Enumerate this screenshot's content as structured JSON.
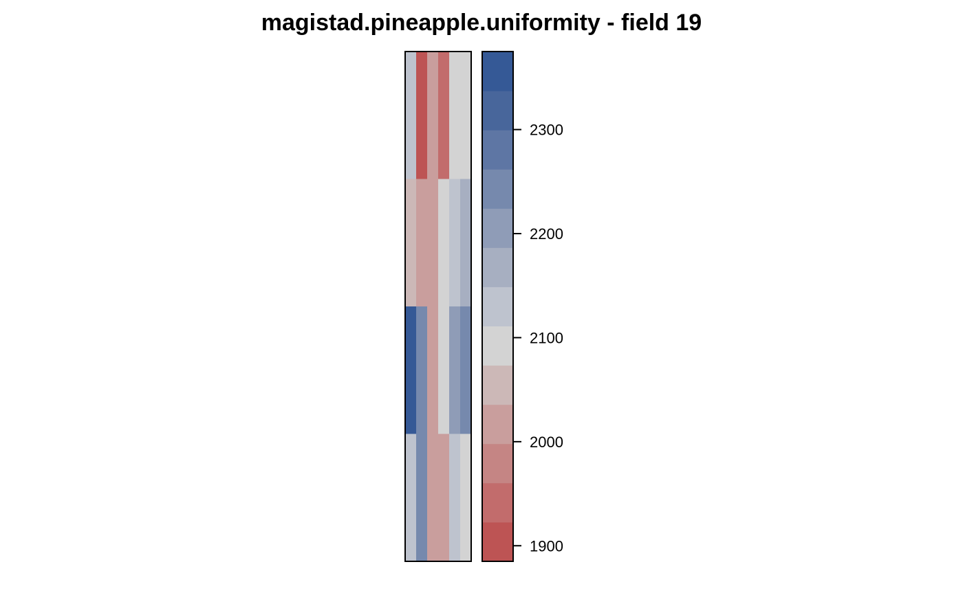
{
  "chart_data": {
    "type": "heatmap",
    "title": "magistad.pineapple.uniformity - field 19",
    "xlabel": "",
    "ylabel": "",
    "grid": false,
    "n_rows": 4,
    "n_cols": 6,
    "rows_top_to_bottom": [
      [
        2125,
        1900,
        2000,
        1940,
        2100,
        2100
      ],
      [
        2050,
        2020,
        2020,
        2100,
        2140,
        2180
      ],
      [
        2360,
        2240,
        2020,
        2100,
        2220,
        2240
      ],
      [
        2125,
        2240,
        2020,
        2020,
        2125,
        2100
      ]
    ],
    "legend": {
      "placement": "right",
      "range": [
        1885,
        2375
      ],
      "ticks": [
        1900,
        2000,
        2100,
        2200,
        2300
      ],
      "tick_labels": [
        "1900",
        "2000",
        "2100",
        "2200",
        "2300"
      ],
      "colors_bottom_to_top": [
        "#bd5454",
        "#c26c6c",
        "#c58584",
        "#c99e9d",
        "#ccb8b7",
        "#d3d3d3",
        "#bec3ce",
        "#a7afc1",
        "#8f9cb7",
        "#7689ad",
        "#5e76a4",
        "#48669b",
        "#355996"
      ]
    }
  }
}
